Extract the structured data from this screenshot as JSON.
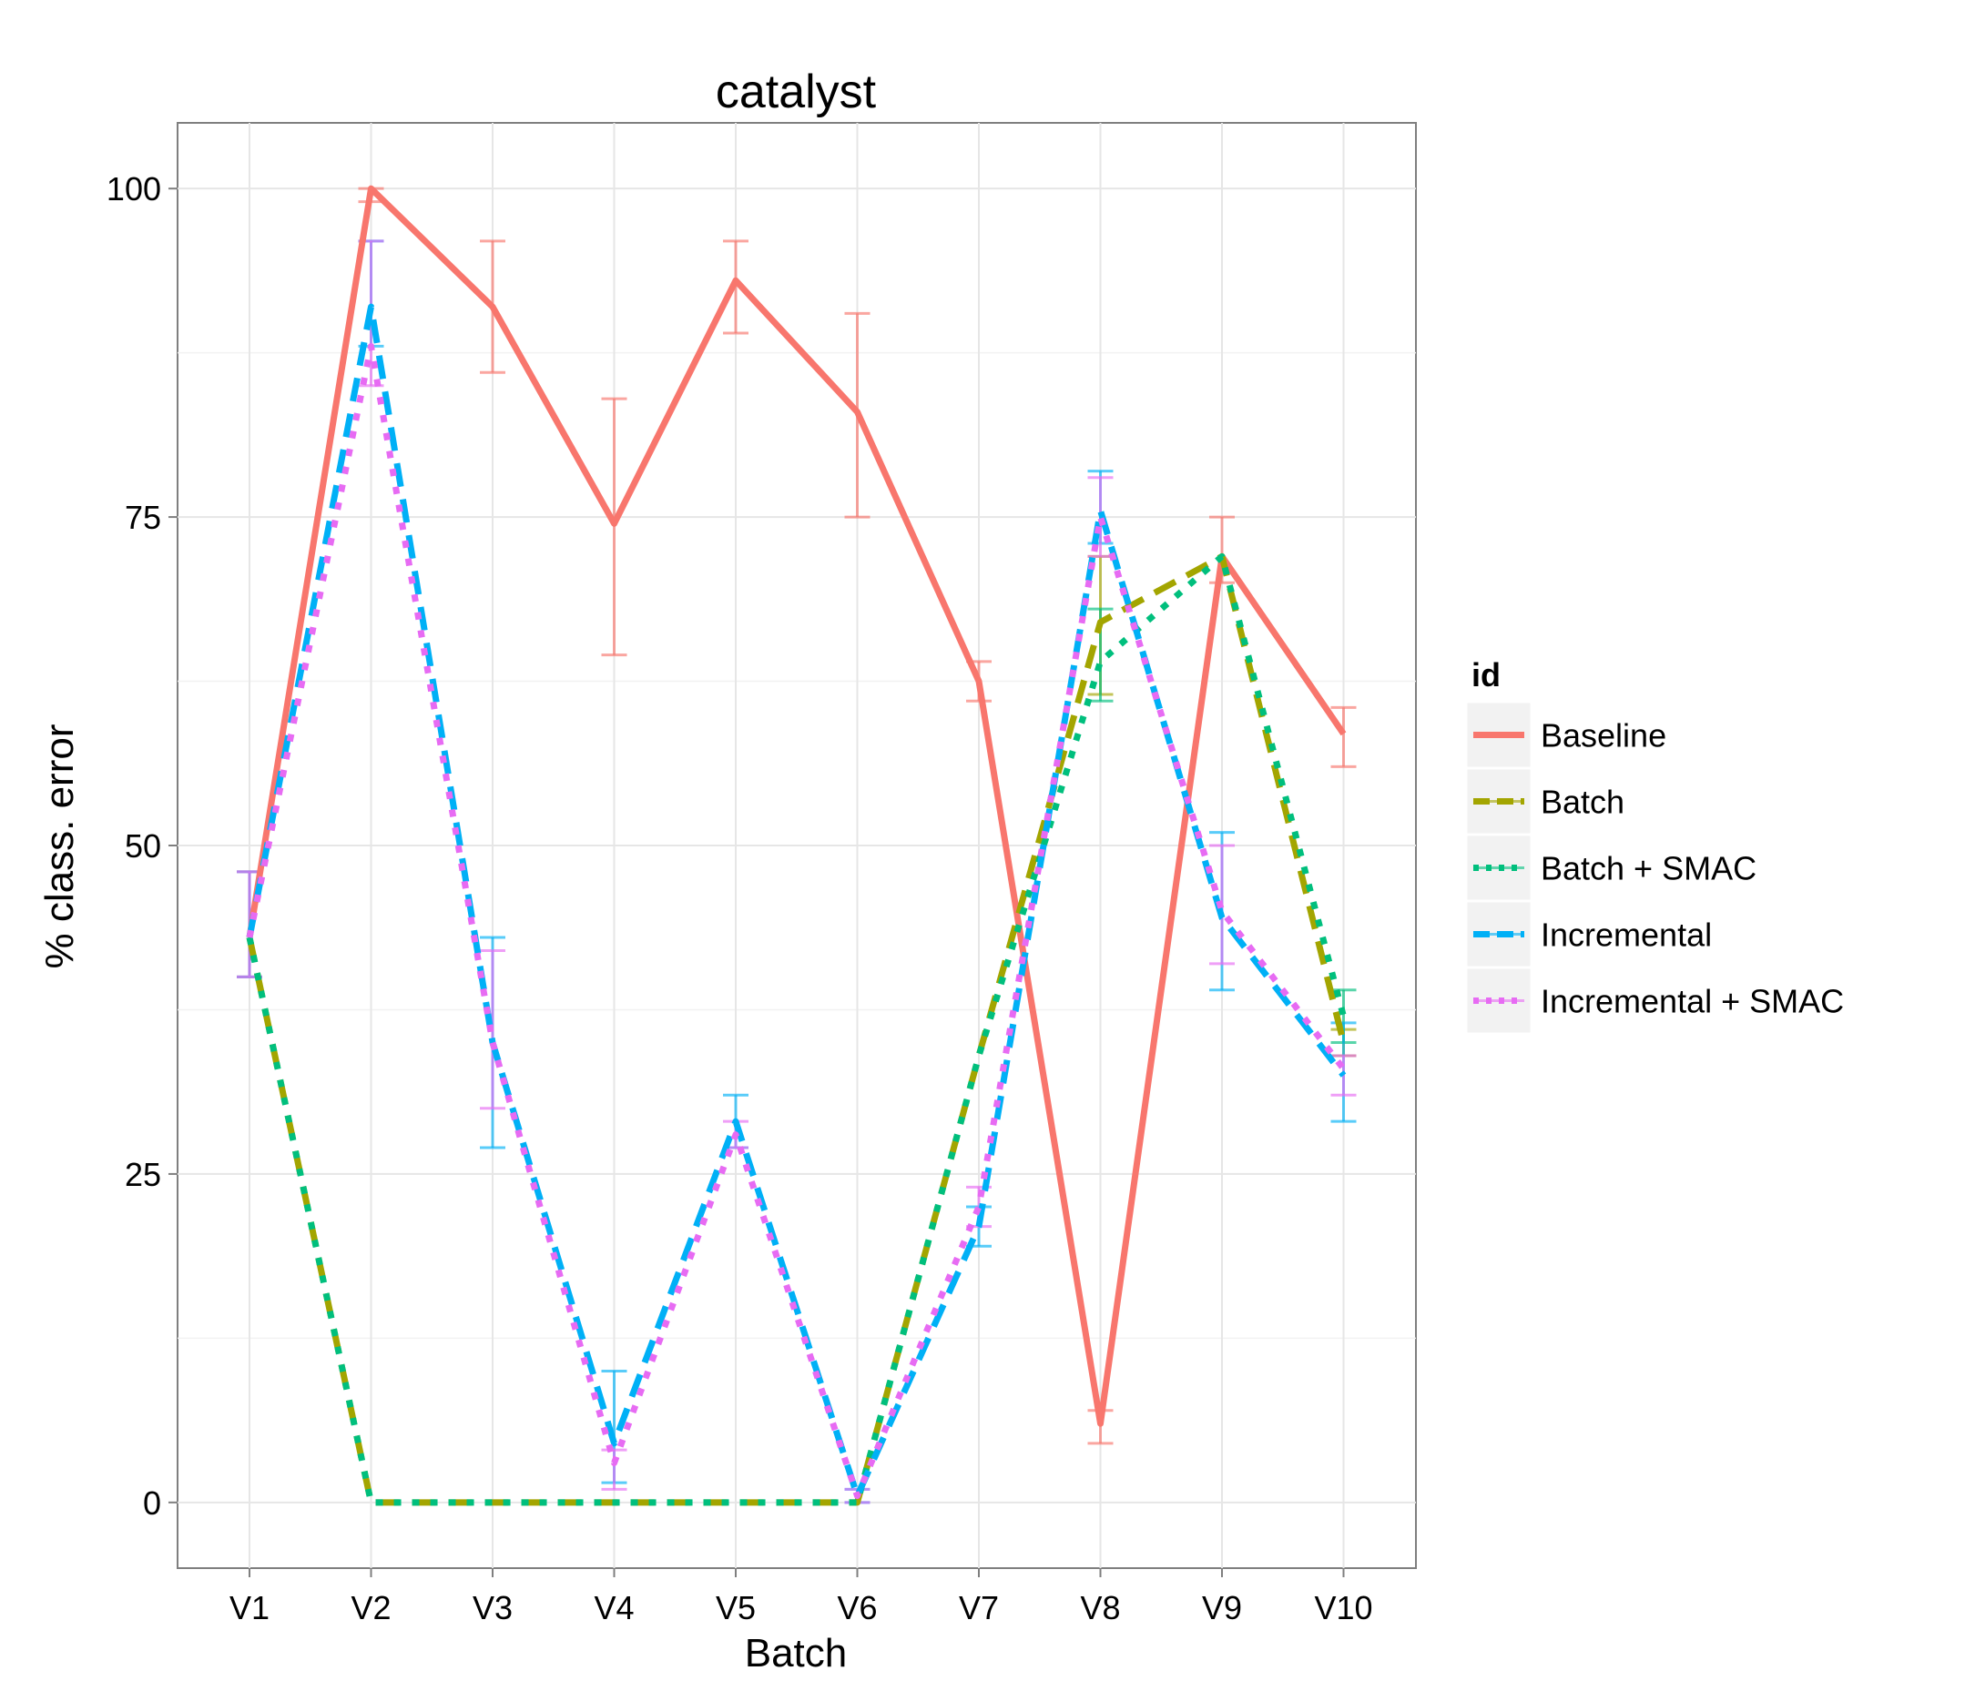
{
  "chart_data": {
    "type": "line",
    "title": "catalyst",
    "xlabel": "Batch",
    "ylabel": "% class. error",
    "categories": [
      "V1",
      "V2",
      "V3",
      "V4",
      "V5",
      "V6",
      "V7",
      "V8",
      "V9",
      "V10"
    ],
    "yticks": [
      0,
      25,
      50,
      75,
      100
    ],
    "ylim": [
      -5,
      105
    ],
    "grid": true,
    "legend": {
      "title": "id",
      "position": "right"
    },
    "series": [
      {
        "name": "Baseline",
        "color": "#F8766D",
        "dash": "solid",
        "values": [
          43,
          100,
          91,
          74.5,
          93,
          83,
          62.5,
          6,
          72,
          58.5
        ],
        "error": [
          [
            40,
            48
          ],
          [
            99,
            100
          ],
          [
            86,
            96
          ],
          [
            64.5,
            84
          ],
          [
            89,
            96
          ],
          [
            75,
            90.5
          ],
          [
            61,
            64
          ],
          [
            4.5,
            7
          ],
          [
            70,
            75
          ],
          [
            56,
            60.5
          ]
        ]
      },
      {
        "name": "Batch",
        "color": "#A3A500",
        "dash": "dashed",
        "values": [
          43,
          0,
          0,
          0,
          0,
          0,
          34,
          67,
          72,
          35
        ],
        "error": [
          null,
          null,
          null,
          null,
          null,
          null,
          null,
          [
            61.5,
            72
          ],
          null,
          [
            34,
            36
          ]
        ]
      },
      {
        "name": "Batch + SMAC",
        "color": "#00BF7D",
        "dash": "dotted",
        "values": [
          43,
          0,
          0,
          0,
          0,
          0,
          34,
          64,
          72,
          37
        ],
        "error": [
          null,
          null,
          null,
          null,
          null,
          null,
          null,
          [
            61,
            68
          ],
          null,
          [
            35,
            39
          ]
        ]
      },
      {
        "name": "Incremental",
        "color": "#00B0F6",
        "dash": "dashed",
        "values": [
          43,
          91,
          35,
          4.5,
          29,
          0.5,
          21,
          75.5,
          44.5,
          32.5
        ],
        "error": [
          [
            40,
            48
          ],
          [
            88,
            96
          ],
          [
            27,
            43
          ],
          [
            1.5,
            10
          ],
          [
            27,
            31
          ],
          [
            0,
            1
          ],
          [
            19.5,
            22.5
          ],
          [
            73,
            78.5
          ],
          [
            39,
            51
          ],
          [
            29,
            36.5
          ]
        ]
      },
      {
        "name": "Incremental + SMAC",
        "color": "#E76BF3",
        "dash": "dotted",
        "values": [
          43,
          88,
          35,
          3,
          28,
          0.5,
          22.5,
          75,
          45,
          33
        ],
        "error": [
          [
            40,
            48
          ],
          [
            85,
            96
          ],
          [
            30,
            42
          ],
          [
            1,
            4
          ],
          [
            27,
            29
          ],
          [
            0,
            1
          ],
          [
            21,
            24
          ],
          [
            72,
            78
          ],
          [
            41,
            50
          ],
          [
            31,
            34
          ]
        ]
      }
    ]
  }
}
